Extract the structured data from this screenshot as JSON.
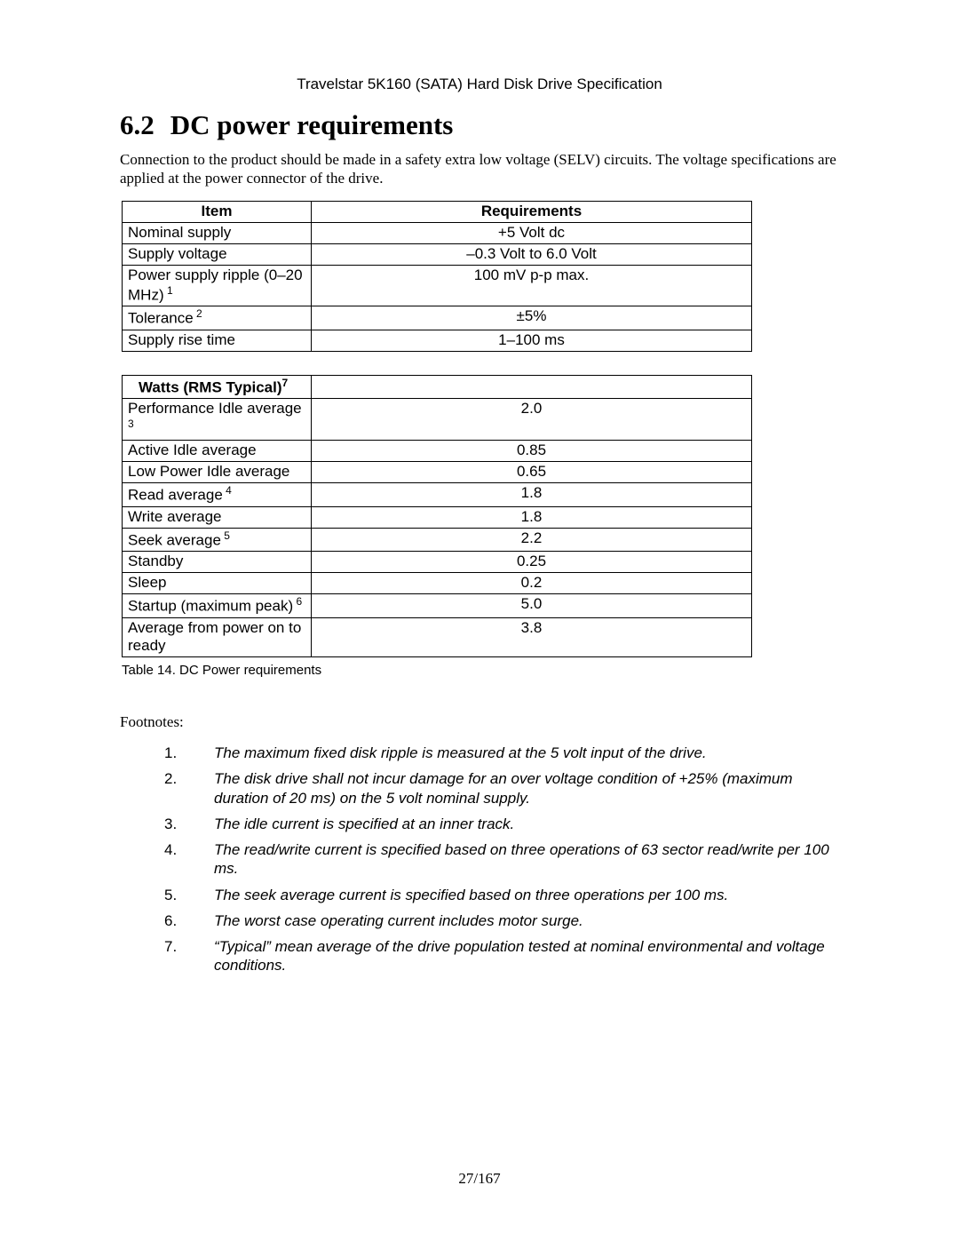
{
  "header": "Travelstar 5K160 (SATA) Hard Disk Drive Specification",
  "section": {
    "number": "6.2",
    "title": "DC power requirements"
  },
  "intro": "Connection to the product should be made in a safety extra low voltage (SELV) circuits. The voltage specifications are applied at the power connector of the drive.",
  "table1": {
    "headers": {
      "item": "Item",
      "req": "Requirements"
    },
    "rows": [
      {
        "item": "Nominal supply",
        "sup": "",
        "req": "+5 Volt dc"
      },
      {
        "item": "Supply voltage",
        "sup": "",
        "req": "–0.3 Volt   to 6.0 Volt"
      },
      {
        "item": "Power supply ripple (0–20 MHz)",
        "sup": "1",
        "req": "100 mV p-p max."
      },
      {
        "item": "Tolerance",
        "sup": "2",
        "req": "±5%"
      },
      {
        "item": "Supply rise time",
        "sup": "",
        "req": "1–100 ms"
      }
    ]
  },
  "table2": {
    "header": {
      "item": "Watts (RMS Typical)",
      "sup": "7"
    },
    "rows": [
      {
        "item": "Performance Idle average",
        "sup": "3",
        "val": "2.0"
      },
      {
        "item": "Active Idle average",
        "sup": "",
        "val": "0.85"
      },
      {
        "item": "Low Power Idle average",
        "sup": "",
        "val": "0.65"
      },
      {
        "item": "Read average",
        "sup": "4",
        "val": "1.8"
      },
      {
        "item": "Write average",
        "sup": "",
        "val": "1.8"
      },
      {
        "item": "Seek average",
        "sup": "5",
        "val": "2.2"
      },
      {
        "item": "Standby",
        "sup": "",
        "val": "0.25"
      },
      {
        "item": "Sleep",
        "sup": "",
        "val": "0.2"
      },
      {
        "item": "Startup (maximum peak)",
        "sup": "6",
        "val": "5.0"
      },
      {
        "item": "Average from power on to ready",
        "sup": "",
        "val": "3.8"
      }
    ]
  },
  "caption": "Table 14. DC Power requirements",
  "footnotes_title": "Footnotes:",
  "footnotes": [
    {
      "n": "1.",
      "t": "The maximum fixed disk ripple is measured at the 5 volt input of the drive."
    },
    {
      "n": "2.",
      "t": "The disk drive shall not incur damage for an over voltage condition of +25% (maximum duration of 20   ms) on the 5 volt nominal supply."
    },
    {
      "n": "3.",
      "t": "The idle current is specified at an inner track."
    },
    {
      "n": "4.",
      "t": "The read/write current is specified based on three operations of 63 sector read/write per 100 ms."
    },
    {
      "n": "5.",
      "t": "The seek average current is specified based on three operations per 100 ms."
    },
    {
      "n": "6.",
      "t": "The worst case operating current includes motor surge."
    },
    {
      "n": "7.",
      "t": "“Typical” mean average of the drive population tested at nominal environmental and voltage conditions."
    }
  ],
  "page_number": "27/167"
}
